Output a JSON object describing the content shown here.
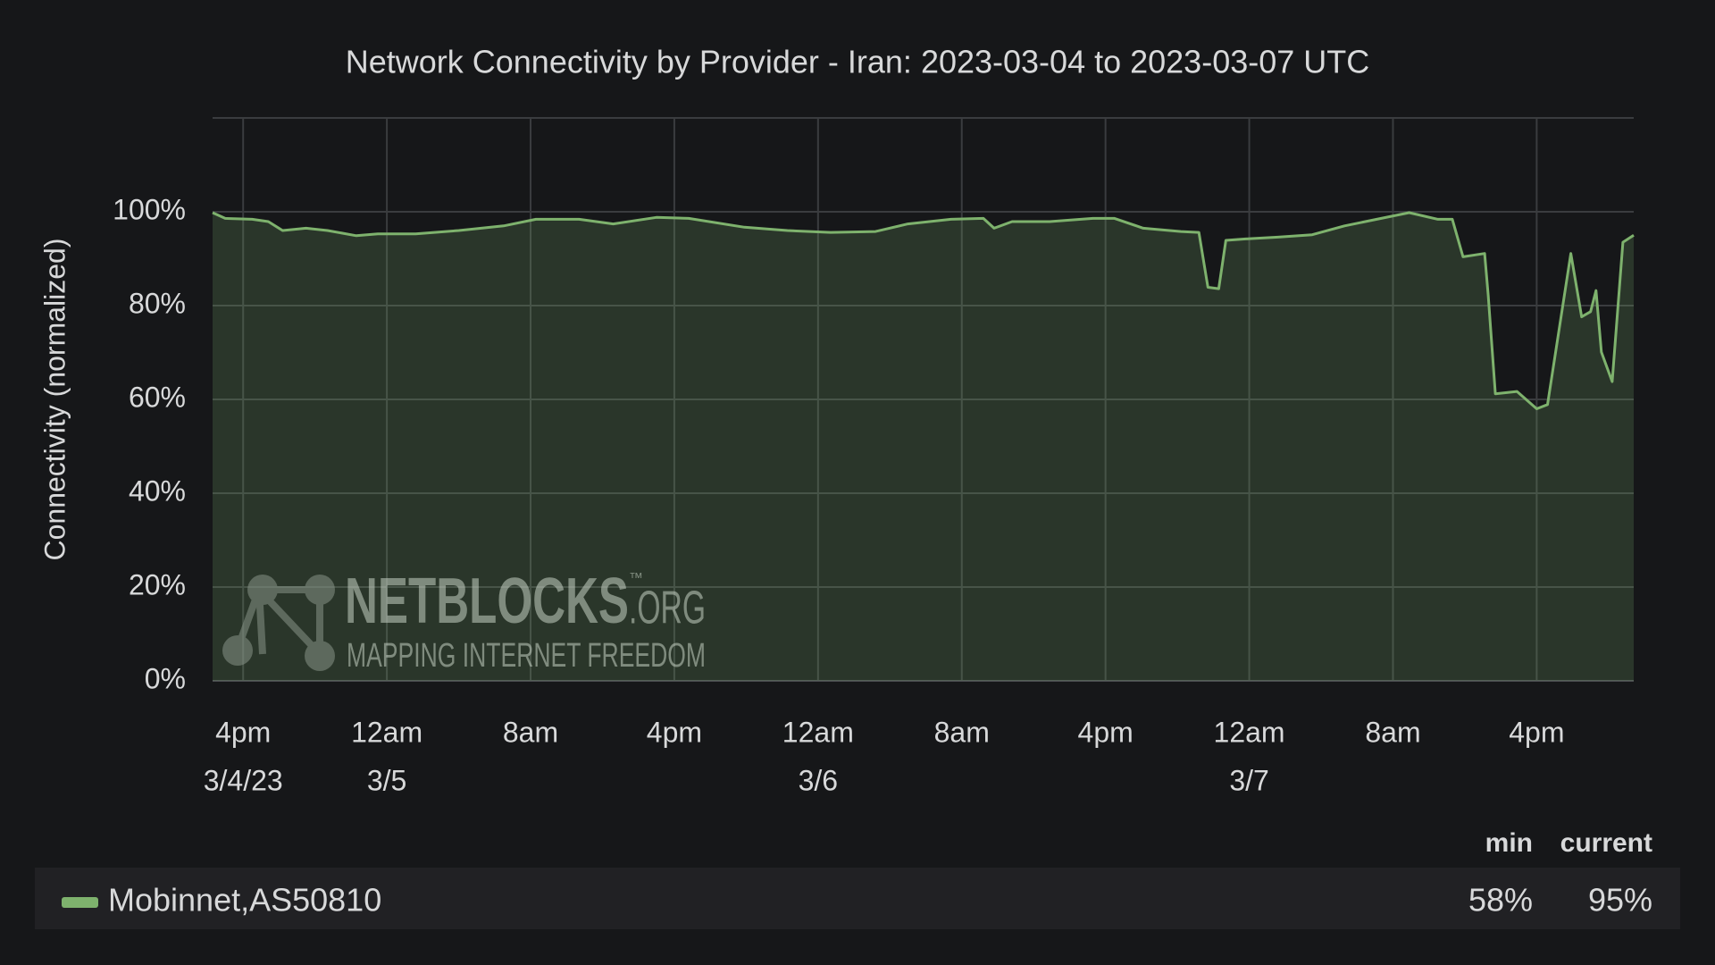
{
  "chart_data": {
    "type": "line",
    "title": "Network Connectivity by Provider - Iran: 2023-03-04 to 2023-03-07 UTC",
    "y_label": "Connectivity (normalized)",
    "xlim": [
      "2023-03-04 14:18",
      "2023-03-07 21:24"
    ],
    "xticks": [
      {
        "value": "2023-03-04 16:00",
        "label": "4pm",
        "date": "3/4/23"
      },
      {
        "value": "2023-03-05 00:00",
        "label": "12am",
        "date": "3/5"
      },
      {
        "value": "2023-03-05 08:00",
        "label": "8am"
      },
      {
        "value": "2023-03-05 16:00",
        "label": "4pm"
      },
      {
        "value": "2023-03-06 00:00",
        "label": "12am",
        "date": "3/6"
      },
      {
        "value": "2023-03-06 08:00",
        "label": "8am"
      },
      {
        "value": "2023-03-06 16:00",
        "label": "4pm"
      },
      {
        "value": "2023-03-07 00:00",
        "label": "12am",
        "date": "3/7"
      },
      {
        "value": "2023-03-07 08:00",
        "label": "8am"
      },
      {
        "value": "2023-03-07 16:00",
        "label": "4pm"
      }
    ],
    "ylim": [
      0,
      120
    ],
    "yticks": [
      {
        "value": 0,
        "label": "0%"
      },
      {
        "value": 20,
        "label": "20%"
      },
      {
        "value": 40,
        "label": "40%"
      },
      {
        "value": 60,
        "label": "60%"
      },
      {
        "value": 80,
        "label": "80%"
      },
      {
        "value": 100,
        "label": "100%"
      }
    ],
    "grid": true,
    "x": [
      "2023-03-04 14:18",
      "2023-03-04 15:00",
      "2023-03-04 16:30",
      "2023-03-04 17:24",
      "2023-03-04 18:12",
      "2023-03-04 19:30",
      "2023-03-04 20:42",
      "2023-03-04 22:18",
      "2023-03-04 23:30",
      "2023-03-05 01:36",
      "2023-03-05 04:00",
      "2023-03-05 06:30",
      "2023-03-05 08:18",
      "2023-03-05 10:42",
      "2023-03-05 12:36",
      "2023-03-05 15:00",
      "2023-03-05 16:48",
      "2023-03-05 19:54",
      "2023-03-05 22:18",
      "2023-03-06 00:42",
      "2023-03-06 03:12",
      "2023-03-06 05:00",
      "2023-03-06 07:24",
      "2023-03-06 09:12",
      "2023-03-06 09:48",
      "2023-03-06 10:48",
      "2023-03-06 12:54",
      "2023-03-06 15:18",
      "2023-03-06 16:30",
      "2023-03-06 18:06",
      "2023-03-06 20:12",
      "2023-03-06 21:12",
      "2023-03-06 21:42",
      "2023-03-06 22:18",
      "2023-03-06 22:42",
      "2023-03-06 23:48",
      "2023-03-07 01:36",
      "2023-03-07 03:30",
      "2023-03-07 05:18",
      "2023-03-07 07:06",
      "2023-03-07 08:54",
      "2023-03-07 10:30",
      "2023-03-07 11:18",
      "2023-03-07 11:54",
      "2023-03-07 13:06",
      "2023-03-07 13:18",
      "2023-03-07 13:42",
      "2023-03-07 14:54",
      "2023-03-07 16:00",
      "2023-03-07 16:36",
      "2023-03-07 17:54",
      "2023-03-07 18:30",
      "2023-03-07 19:00",
      "2023-03-07 19:18",
      "2023-03-07 19:36",
      "2023-03-07 20:12",
      "2023-03-07 20:48",
      "2023-03-07 21:24"
    ],
    "series": [
      {
        "name": "Mobinnet,AS50810",
        "color": "#7eb26d",
        "values": [
          99.8,
          98.6,
          98.4,
          97.9,
          96,
          96.5,
          96,
          94.9,
          95.3,
          95.3,
          96,
          97,
          98.4,
          98.4,
          97.4,
          98.8,
          98.6,
          96.7,
          96,
          95.6,
          95.8,
          97.4,
          98.4,
          98.6,
          96.5,
          97.9,
          97.9,
          98.6,
          98.6,
          96.5,
          95.8,
          95.6,
          83.9,
          83.6,
          93.9,
          94.2,
          94.6,
          95.1,
          97,
          98.4,
          99.8,
          98.4,
          98.4,
          90.4,
          91.1,
          82.2,
          61.2,
          61.7,
          58,
          58.9,
          91.1,
          77.6,
          78.7,
          83.2,
          70.1,
          63.8,
          93.5,
          95
        ],
        "stats": [
          58,
          95
        ],
        "stats_labels": [
          "58%",
          "95%"
        ]
      }
    ],
    "legend_columns": [
      "min",
      "current"
    ],
    "watermark": {
      "name": "NETBLOCKS",
      "tm": "™",
      "suffix": ".ORG",
      "tagline": "MAPPING INTERNET FREEDOM"
    }
  }
}
